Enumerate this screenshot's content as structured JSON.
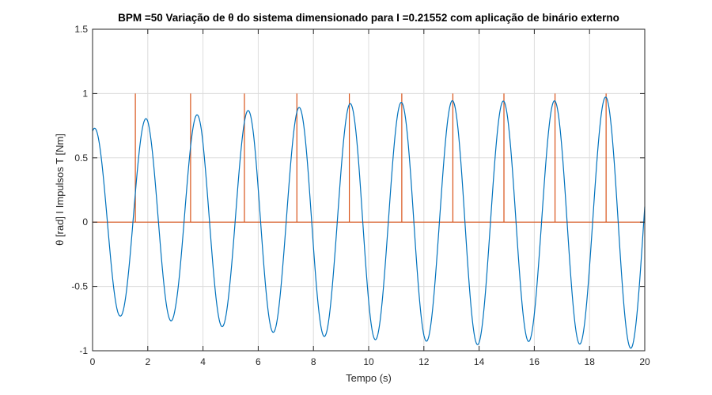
{
  "chart_data": {
    "type": "line",
    "title": "BPM =50 Variação de θ do sistema dimensionado para I =0.21552 com aplicação de binário externo",
    "xlabel": "Tempo (s)",
    "ylabel": "θ    [rad] I Impulsos T [Nm]",
    "xlim": [
      0,
      20
    ],
    "ylim": [
      -1,
      1.5
    ],
    "xticks": [
      "0",
      "2",
      "4",
      "6",
      "8",
      "10",
      "12",
      "14",
      "16",
      "18",
      "20"
    ],
    "yticks": [
      "-1",
      "-0.5",
      "0",
      "0.5",
      "1",
      "1.5"
    ],
    "grid": true,
    "legend": "none",
    "series": [
      {
        "color": "#0072BD",
        "shape": "sinusoid",
        "period": 1.85,
        "start": {
          "x": 0,
          "y": 0.78
        },
        "peaks": [
          {
            "x": 2.0,
            "y": 0.81
          },
          {
            "x": 3.95,
            "y": 0.85
          },
          {
            "x": 5.85,
            "y": 0.89
          },
          {
            "x": 7.8,
            "y": 0.92
          },
          {
            "x": 9.65,
            "y": 0.95
          },
          {
            "x": 11.55,
            "y": 0.96
          },
          {
            "x": 13.45,
            "y": 0.98
          },
          {
            "x": 15.3,
            "y": 0.95
          },
          {
            "x": 17.15,
            "y": 0.97
          },
          {
            "x": 19.05,
            "y": 1.01
          }
        ],
        "troughs": [
          {
            "x": 1.0,
            "y": -0.73
          },
          {
            "x": 3.0,
            "y": -0.76
          },
          {
            "x": 4.95,
            "y": -0.8
          },
          {
            "x": 6.9,
            "y": -0.84
          },
          {
            "x": 8.75,
            "y": -0.87
          },
          {
            "x": 10.65,
            "y": -0.89
          },
          {
            "x": 12.5,
            "y": -0.9
          },
          {
            "x": 14.35,
            "y": -0.93
          },
          {
            "x": 16.2,
            "y": -0.91
          },
          {
            "x": 18.05,
            "y": -0.93
          },
          {
            "x": 19.95,
            "y": -0.95
          }
        ]
      },
      {
        "color": "#D95319",
        "shape": "impulses",
        "baseline": 0,
        "amplitude": 1,
        "x": [
          1.55,
          3.55,
          5.5,
          7.4,
          9.3,
          11.2,
          13.05,
          14.9,
          16.75,
          18.6
        ]
      }
    ]
  }
}
